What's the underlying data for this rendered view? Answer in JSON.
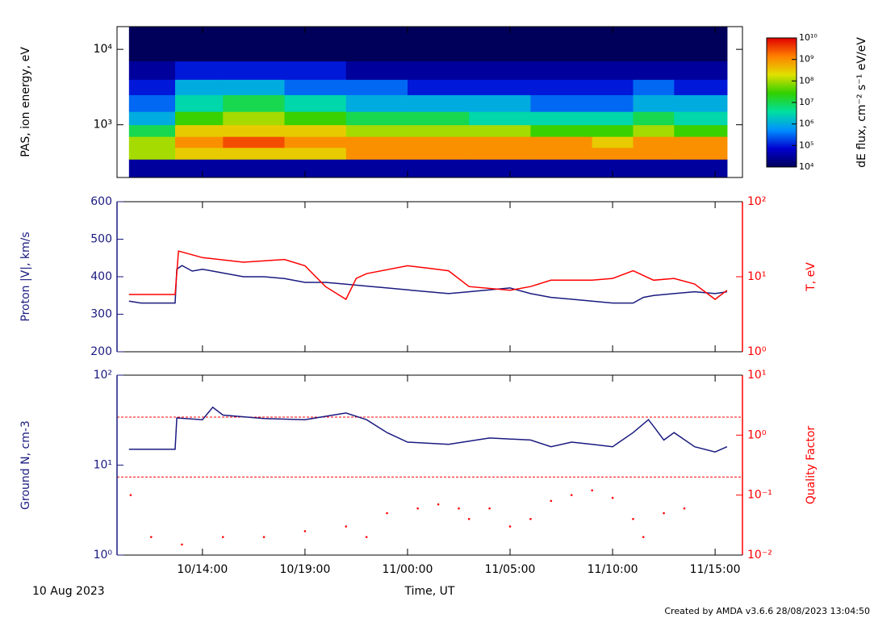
{
  "chart_data": [
    {
      "type": "heatmap",
      "ylabel": "PAS, ion energy, eV",
      "ylog": true,
      "ylim": [
        200,
        20000
      ],
      "yticks": [
        {
          "value": 1000,
          "label": "10³"
        },
        {
          "value": 10000,
          "label": "10⁴"
        }
      ],
      "xlim": [
        "10/09:50",
        "11/16:20"
      ],
      "x_edges": [
        "10/10:25",
        "10/12:40",
        "10/15:00",
        "10/18:00",
        "10/21:00",
        "11/00:00",
        "11/03:00",
        "11/06:00",
        "11/09:00",
        "11/11:00",
        "11/13:00",
        "11/15:35"
      ],
      "y_edges": [
        200,
        350,
        500,
        700,
        1000,
        1500,
        2500,
        4000,
        7000,
        20000
      ],
      "z": [
        [
          30000.0,
          100000000.0,
          100000000.0,
          10000000.0,
          1000000.0,
          300000.0,
          100000.0,
          30000.0,
          10000.0
        ],
        [
          30000.0,
          300000000.0,
          1000000000.0,
          300000000.0,
          30000000.0,
          3000000.0,
          1000000.0,
          100000.0,
          10000.0
        ],
        [
          30000.0,
          300000000.0,
          3000000000.0,
          300000000.0,
          100000000.0,
          10000000.0,
          1000000.0,
          100000.0,
          10000.0
        ],
        [
          30000.0,
          300000000.0,
          1000000000.0,
          300000000.0,
          30000000.0,
          3000000.0,
          300000.0,
          100000.0,
          10000.0
        ],
        [
          30000.0,
          1000000000.0,
          1000000000.0,
          100000000.0,
          10000000.0,
          1000000.0,
          300000.0,
          30000.0,
          10000.0
        ],
        [
          30000.0,
          1000000000.0,
          1000000000.0,
          100000000.0,
          10000000.0,
          1000000.0,
          100000.0,
          30000.0,
          10000.0
        ],
        [
          30000.0,
          1000000000.0,
          1000000000.0,
          100000000.0,
          3000000.0,
          1000000.0,
          100000.0,
          30000.0,
          10000.0
        ],
        [
          30000.0,
          1000000000.0,
          1000000000.0,
          30000000.0,
          3000000.0,
          300000.0,
          100000.0,
          30000.0,
          10000.0
        ],
        [
          30000.0,
          1000000000.0,
          300000000.0,
          30000000.0,
          3000000.0,
          300000.0,
          100000.0,
          30000.0,
          10000.0
        ],
        [
          30000.0,
          1000000000.0,
          1000000000.0,
          100000000.0,
          10000000.0,
          1000000.0,
          300000.0,
          30000.0,
          10000.0
        ],
        [
          30000.0,
          1000000000.0,
          1000000000.0,
          30000000.0,
          3000000.0,
          1000000.0,
          100000.0,
          30000.0,
          10000.0
        ]
      ],
      "colorbar": {
        "label": "dE flux, cm⁻² s⁻¹ eV/eV",
        "lim": [
          10000.0,
          10000000000.0
        ],
        "ticks": [
          {
            "value": 10000.0,
            "label": "10⁴"
          },
          {
            "value": 100000.0,
            "label": "10⁵"
          },
          {
            "value": 1000000.0,
            "label": "10⁶"
          },
          {
            "value": 10000000.0,
            "label": "10⁷"
          },
          {
            "value": 100000000.0,
            "label": "10⁸"
          },
          {
            "value": 1000000000.0,
            "label": "10⁹"
          },
          {
            "value": 10000000000.0,
            "label": "10¹⁰"
          }
        ],
        "colors": [
          "#00005a",
          "#0000d0",
          "#0090ff",
          "#00e0a0",
          "#30d000",
          "#e0e000",
          "#ff8000",
          "#e00000"
        ]
      }
    },
    {
      "type": "line",
      "ylabel": "Proton |V|, km/s",
      "y2label": "T, eV",
      "xlim": [
        "10/09:50",
        "11/16:20"
      ],
      "ylog": false,
      "ylim": [
        200,
        600
      ],
      "yticks": [
        200,
        300,
        400,
        500,
        600
      ],
      "y2log": true,
      "y2lim": [
        1,
        100
      ],
      "y2ticks": [
        {
          "value": 1,
          "label": "10⁰"
        },
        {
          "value": 10,
          "label": "10¹"
        },
        {
          "value": 100,
          "label": "10²"
        }
      ],
      "series": [
        {
          "name": "Proton |V|",
          "color": "#1a1a80",
          "axis": "y",
          "x": [
            "10/10:25",
            "10/11:00",
            "10/12:00",
            "10/12:40",
            "10/12:45",
            "10/13:00",
            "10/13:30",
            "10/14:00",
            "10/15:00",
            "10/16:00",
            "10/17:00",
            "10/18:00",
            "10/19:00",
            "10/20:00",
            "10/21:00",
            "10/22:00",
            "10/23:00",
            "11/00:00",
            "11/01:00",
            "11/02:00",
            "11/03:00",
            "11/04:00",
            "11/05:00",
            "11/06:00",
            "11/07:00",
            "11/08:00",
            "11/09:00",
            "11/10:00",
            "11/11:00",
            "11/11:30",
            "11/12:00",
            "11/13:00",
            "11/14:00",
            "11/15:00",
            "11/15:35"
          ],
          "values": [
            335,
            330,
            330,
            330,
            420,
            430,
            415,
            420,
            410,
            400,
            400,
            395,
            385,
            385,
            380,
            375,
            370,
            365,
            360,
            355,
            360,
            365,
            370,
            355,
            345,
            340,
            335,
            330,
            330,
            345,
            350,
            355,
            360,
            355,
            360
          ]
        },
        {
          "name": "T",
          "color": "#ff0000",
          "axis": "y2",
          "x": [
            "10/10:25",
            "10/12:40",
            "10/12:50",
            "10/14:00",
            "10/16:00",
            "10/18:00",
            "10/19:00",
            "10/20:00",
            "10/21:00",
            "10/21:30",
            "10/22:00",
            "11/00:00",
            "11/01:00",
            "11/02:00",
            "11/03:00",
            "11/05:00",
            "11/06:00",
            "11/07:00",
            "11/09:00",
            "11/10:00",
            "11/11:00",
            "11/12:00",
            "11/13:00",
            "11/14:00",
            "11/15:00",
            "11/15:35"
          ],
          "values": [
            5.8,
            5.8,
            22,
            18,
            15.6,
            17,
            14,
            7.4,
            5,
            9.5,
            11,
            14,
            13,
            12,
            7.4,
            6.6,
            7.4,
            9,
            9,
            9.5,
            12,
            9,
            9.5,
            8,
            5,
            6.6
          ]
        }
      ]
    },
    {
      "type": "line",
      "ylabel": "Ground N, cm-3",
      "y2label": "Quality Factor",
      "xlabel": "Time, UT",
      "date_label": "10 Aug 2023",
      "xlim": [
        "10/09:50",
        "11/16:20"
      ],
      "xticks": [
        "10/14:00",
        "10/19:00",
        "11/00:00",
        "11/05:00",
        "11/10:00",
        "11/15:00"
      ],
      "ylog": true,
      "ylim": [
        1,
        100
      ],
      "yticks": [
        {
          "value": 1,
          "label": "10⁰"
        },
        {
          "value": 10,
          "label": "10¹"
        },
        {
          "value": 100,
          "label": "10²"
        }
      ],
      "y2log": true,
      "y2lim": [
        0.01,
        10
      ],
      "y2ticks": [
        {
          "value": 0.01,
          "label": "10⁻²"
        },
        {
          "value": 0.1,
          "label": "10⁻¹"
        },
        {
          "value": 1,
          "label": "10⁰"
        },
        {
          "value": 10,
          "label": "10¹"
        }
      ],
      "y2_reference_lines": [
        2,
        0.2
      ],
      "series": [
        {
          "name": "Ground N",
          "color": "#1a1a80",
          "axis": "y",
          "x": [
            "10/10:25",
            "10/12:40",
            "10/12:45",
            "10/14:00",
            "10/14:30",
            "10/15:00",
            "10/17:00",
            "10/19:00",
            "10/21:00",
            "10/22:00",
            "10/23:00",
            "11/00:00",
            "11/02:00",
            "11/04:00",
            "11/06:00",
            "11/07:00",
            "11/08:00",
            "11/09:00",
            "11/10:00",
            "11/11:00",
            "11/11:45",
            "11/12:00",
            "11/12:30",
            "11/13:00",
            "11/14:00",
            "11/15:00",
            "11/15:35"
          ],
          "values": [
            15,
            15,
            33.5,
            32,
            44,
            36,
            33,
            32,
            38,
            32,
            23,
            18,
            17,
            20,
            19,
            16,
            18,
            17,
            16,
            23,
            32,
            27,
            19,
            23,
            16,
            14,
            16
          ]
        },
        {
          "name": "Quality Factor",
          "color": "#ff0000",
          "axis": "y2",
          "style": "dots",
          "x": [
            "10/10:30",
            "10/11:30",
            "10/13:00",
            "10/15:00",
            "10/17:00",
            "10/19:00",
            "10/21:00",
            "10/22:00",
            "10/23:00",
            "11/00:30",
            "11/01:30",
            "11/02:30",
            "11/03:00",
            "11/04:00",
            "11/05:00",
            "11/06:00",
            "11/07:00",
            "11/08:00",
            "11/09:00",
            "11/10:00",
            "11/11:00",
            "11/11:30",
            "11/12:30",
            "11/13:30"
          ],
          "values": [
            0.1,
            0.02,
            0.015,
            0.02,
            0.02,
            0.025,
            0.03,
            0.02,
            0.05,
            0.06,
            0.07,
            0.06,
            0.04,
            0.06,
            0.03,
            0.04,
            0.08,
            0.1,
            0.12,
            0.09,
            0.04,
            0.02,
            0.05,
            0.06
          ]
        }
      ]
    }
  ],
  "footer": "Created by AMDA v3.6.6 28/08/2023 13:04:50"
}
